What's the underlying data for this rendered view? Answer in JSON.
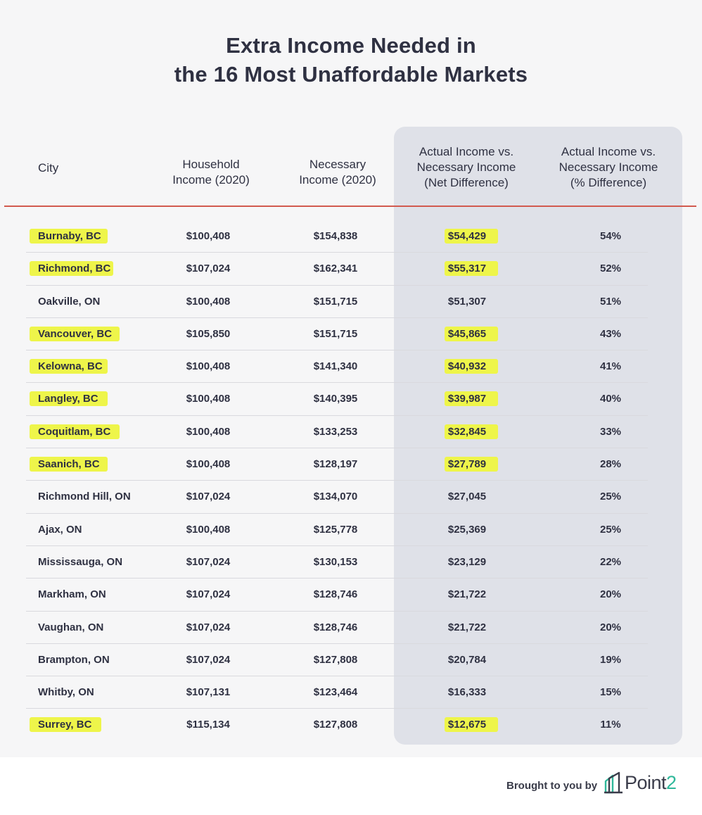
{
  "title_line1": "Extra Income Needed in",
  "title_line2": "the 16 Most Unaffordable Markets",
  "headers": {
    "city": "City",
    "household_1": "Household",
    "household_2": "Income (2020)",
    "necessary_1": "Necessary",
    "necessary_2": "Income (2020)",
    "net_1": "Actual Income vs.",
    "net_2": "Necessary Income",
    "net_3": "(Net Difference)",
    "pct_1": "Actual Income vs.",
    "pct_2": "Necessary Income",
    "pct_3": "(% Difference)"
  },
  "colors": {
    "highlight": "#eef54a",
    "header_rule": "#d25a4f",
    "shaded_columns": "#dfe1e8",
    "logo_accent": "#2fb89a"
  },
  "chart_data": {
    "type": "table",
    "title": "Extra Income Needed in the 16 Most Unaffordable Markets",
    "columns": [
      "City",
      "Household Income (2020)",
      "Necessary Income (2020)",
      "Actual Income vs. Necessary Income (Net Difference)",
      "Actual Income vs. Necessary Income (% Difference)"
    ],
    "rows": [
      {
        "city": "Burnaby, BC",
        "household": "$100,408",
        "necessary": "$154,838",
        "net": "$54,429",
        "pct": "54%",
        "highlight": true
      },
      {
        "city": "Richmond, BC",
        "household": "$107,024",
        "necessary": "$162,341",
        "net": "$55,317",
        "pct": "52%",
        "highlight": true
      },
      {
        "city": "Oakville, ON",
        "household": "$100,408",
        "necessary": "$151,715",
        "net": "$51,307",
        "pct": "51%",
        "highlight": false
      },
      {
        "city": "Vancouver, BC",
        "household": "$105,850",
        "necessary": "$151,715",
        "net": "$45,865",
        "pct": "43%",
        "highlight": true
      },
      {
        "city": "Kelowna, BC",
        "household": "$100,408",
        "necessary": "$141,340",
        "net": "$40,932",
        "pct": "41%",
        "highlight": true
      },
      {
        "city": "Langley, BC",
        "household": "$100,408",
        "necessary": "$140,395",
        "net": "$39,987",
        "pct": "40%",
        "highlight": true
      },
      {
        "city": "Coquitlam, BC",
        "household": "$100,408",
        "necessary": "$133,253",
        "net": "$32,845",
        "pct": "33%",
        "highlight": true
      },
      {
        "city": "Saanich, BC",
        "household": "$100,408",
        "necessary": "$128,197",
        "net": "$27,789",
        "pct": "28%",
        "highlight": true
      },
      {
        "city": "Richmond Hill, ON",
        "household": "$107,024",
        "necessary": "$134,070",
        "net": "$27,045",
        "pct": "25%",
        "highlight": false
      },
      {
        "city": "Ajax, ON",
        "household": "$100,408",
        "necessary": "$125,778",
        "net": "$25,369",
        "pct": "25%",
        "highlight": false
      },
      {
        "city": "Mississauga, ON",
        "household": "$107,024",
        "necessary": "$130,153",
        "net": "$23,129",
        "pct": "22%",
        "highlight": false
      },
      {
        "city": "Markham, ON",
        "household": "$107,024",
        "necessary": "$128,746",
        "net": "$21,722",
        "pct": "20%",
        "highlight": false
      },
      {
        "city": "Vaughan, ON",
        "household": "$107,024",
        "necessary": "$128,746",
        "net": "$21,722",
        "pct": "20%",
        "highlight": false
      },
      {
        "city": "Brampton, ON",
        "household": "$107,024",
        "necessary": "$127,808",
        "net": "$20,784",
        "pct": "19%",
        "highlight": false
      },
      {
        "city": "Whitby, ON",
        "household": "$107,131",
        "necessary": "$123,464",
        "net": "$16,333",
        "pct": "15%",
        "highlight": false
      },
      {
        "city": "Surrey, BC",
        "household": "$115,134",
        "necessary": "$127,808",
        "net": "$12,675",
        "pct": "11%",
        "highlight": true
      }
    ]
  },
  "footer": {
    "credit": "Brought to you by",
    "logo_name": "Point",
    "logo_digit": "2",
    "logo_icon": "house-outline-icon"
  }
}
